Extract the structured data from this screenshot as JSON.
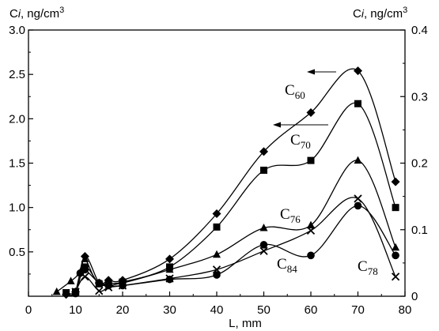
{
  "chart_data": {
    "type": "line",
    "xlabel": "L, mm",
    "ylabel_left": {
      "main": "C",
      "sub": "i",
      "unit": ", ng/cm",
      "sup": "3"
    },
    "ylabel_right": {
      "main": "C",
      "sub": "i",
      "unit": ", ng/cm",
      "sup": "3"
    },
    "xlim": [
      0,
      80
    ],
    "ylim_left": [
      0,
      3.0
    ],
    "ylim_right": [
      0,
      0.4
    ],
    "x_ticks": [
      "0",
      "10",
      "20",
      "30",
      "40",
      "50",
      "60",
      "70",
      "80"
    ],
    "y_left_ticks": [
      "0.5",
      "1.0",
      "1.5",
      "2.0",
      "2.5",
      "3.0"
    ],
    "y_right_ticks": [
      "0",
      "0.1",
      "0.2",
      "0.3",
      "0.4"
    ],
    "grid": false,
    "series": [
      {
        "name": "C60",
        "label_main": "C",
        "label_sub": "60",
        "marker": "diamond",
        "axis": "left",
        "x": [
          8,
          10,
          12,
          15,
          17,
          20,
          30,
          40,
          50,
          60,
          70,
          78
        ],
        "y": [
          0.02,
          0.05,
          0.45,
          0.15,
          0.18,
          0.18,
          0.42,
          0.93,
          1.63,
          2.07,
          2.54,
          1.29
        ]
      },
      {
        "name": "C70",
        "label_main": "C",
        "label_sub": "70",
        "marker": "square",
        "axis": "left",
        "x": [
          8,
          10,
          12,
          15,
          17,
          20,
          30,
          40,
          50,
          60,
          70,
          78
        ],
        "y": [
          0.04,
          0.05,
          0.33,
          0.14,
          0.15,
          0.16,
          0.33,
          0.78,
          1.42,
          1.53,
          2.17,
          1.0
        ]
      },
      {
        "name": "C76",
        "label_main": "C",
        "label_sub": "76",
        "marker": "triangle",
        "axis": "left",
        "x": [
          6,
          9,
          11,
          12,
          15,
          20,
          30,
          40,
          50,
          60,
          70,
          78
        ],
        "y": [
          0.05,
          0.17,
          0.27,
          0.42,
          0.14,
          0.15,
          0.3,
          0.47,
          0.77,
          0.8,
          1.53,
          0.55
        ]
      },
      {
        "name": "C84",
        "label_main": "C",
        "label_sub": "84",
        "marker": "circle",
        "axis": "left",
        "x": [
          10,
          11,
          12,
          15,
          17,
          20,
          30,
          40,
          50,
          60,
          70,
          78
        ],
        "y": [
          0.03,
          0.26,
          0.3,
          0.15,
          0.12,
          0.12,
          0.19,
          0.24,
          0.58,
          0.46,
          1.02,
          0.46
        ]
      },
      {
        "name": "C78",
        "label_main": "C",
        "label_sub": "78",
        "marker": "cross",
        "axis": "left",
        "x": [
          10,
          12,
          15,
          17,
          20,
          30,
          40,
          50,
          60,
          70,
          78
        ],
        "y": [
          0.05,
          0.22,
          0.06,
          0.1,
          0.12,
          0.2,
          0.3,
          0.51,
          0.74,
          1.1,
          0.22
        ]
      }
    ],
    "annotations": [
      {
        "type": "arrow",
        "direction": "left",
        "target": "left-axis",
        "series": "C60"
      },
      {
        "type": "arrow",
        "direction": "left",
        "target": "left-axis",
        "series": "C70"
      }
    ]
  }
}
